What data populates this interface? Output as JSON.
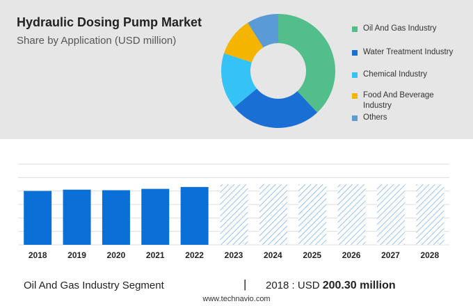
{
  "header": {
    "title": "Hydraulic Dosing Pump Market",
    "subtitle": "Share by Application (USD million)"
  },
  "footer": {
    "segment": "Oil And Gas Industry Segment",
    "separator": "|",
    "year_label": "2018 : USD",
    "value_label": "200.30 million",
    "source": "www.technavio.com"
  },
  "chart_data": [
    {
      "type": "pie",
      "variant": "donut",
      "categories": [
        "Oil And Gas Industry",
        "Water Treatment Industry",
        "Chemical Industry",
        "Food And Beverage Industry",
        "Others"
      ],
      "values": [
        38,
        26,
        16,
        11,
        9
      ],
      "colors": [
        "#52be8c",
        "#1a6fd4",
        "#34c3f4",
        "#f4b400",
        "#5b9bd5"
      ],
      "legend_placement": "right"
    },
    {
      "type": "bar",
      "categories": [
        "2018",
        "2019",
        "2020",
        "2021",
        "2022",
        "2023",
        "2024",
        "2025",
        "2026",
        "2027",
        "2028"
      ],
      "values": [
        200.3,
        205,
        203,
        208,
        215,
        null,
        null,
        null,
        null,
        null,
        null
      ],
      "forecast": [
        "2023",
        "2024",
        "2025",
        "2026",
        "2027",
        "2028"
      ],
      "forecast_style": "hatched",
      "ylim": [
        0,
        300
      ],
      "grid": true,
      "colors": {
        "bar": "#0a6fd6",
        "hatch": "#6aa9e8",
        "grid": "#dddddd"
      }
    }
  ]
}
